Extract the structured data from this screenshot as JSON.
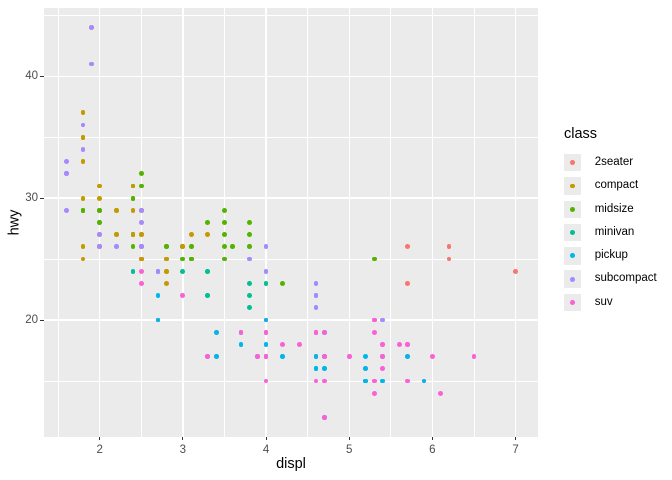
{
  "figure": {
    "background": "#FFFFFF",
    "panel_background": "#EBEBEB",
    "gridline_color": "#FFFFFF",
    "axis_text_color": "#4D4D4D",
    "tick_mark_color": "#333333"
  },
  "chart_data": {
    "type": "scatter",
    "title": "",
    "xlabel": "displ",
    "ylabel": "hwy",
    "x_ticks": [
      2,
      3,
      4,
      5,
      6,
      7
    ],
    "x_minor_ticks": [
      1.5,
      2.5,
      3.5,
      4.5,
      5.5,
      6.5
    ],
    "y_ticks": [
      20,
      30,
      40
    ],
    "y_minor_ticks": [
      15,
      25,
      35,
      45
    ],
    "x_range": [
      1.33,
      7.27
    ],
    "y_range": [
      10.4,
      45.6
    ],
    "grid": true,
    "legend": {
      "title": "class",
      "position": "right",
      "entries": [
        {
          "label": "2seater",
          "color": "#F8766D"
        },
        {
          "label": "compact",
          "color": "#C49A00"
        },
        {
          "label": "midsize",
          "color": "#53B400"
        },
        {
          "label": "minivan",
          "color": "#00C094"
        },
        {
          "label": "pickup",
          "color": "#00B6EB"
        },
        {
          "label": "subcompact",
          "color": "#A58AFF"
        },
        {
          "label": "suv",
          "color": "#FB61D7"
        }
      ]
    },
    "points": [
      [
        1.8,
        29,
        "compact"
      ],
      [
        1.8,
        29,
        "compact"
      ],
      [
        2,
        31,
        "compact"
      ],
      [
        2,
        30,
        "compact"
      ],
      [
        2.8,
        26,
        "compact"
      ],
      [
        2.8,
        26,
        "compact"
      ],
      [
        3.1,
        27,
        "compact"
      ],
      [
        1.8,
        26,
        "compact"
      ],
      [
        1.8,
        25,
        "compact"
      ],
      [
        2,
        28,
        "compact"
      ],
      [
        2,
        27,
        "compact"
      ],
      [
        2.8,
        25,
        "compact"
      ],
      [
        2.8,
        25,
        "compact"
      ],
      [
        3.1,
        25,
        "compact"
      ],
      [
        3.1,
        25,
        "compact"
      ],
      [
        2.8,
        24,
        "midsize"
      ],
      [
        3.1,
        25,
        "midsize"
      ],
      [
        4.2,
        23,
        "midsize"
      ],
      [
        5.3,
        20,
        "suv"
      ],
      [
        5.3,
        15,
        "suv"
      ],
      [
        5.3,
        20,
        "suv"
      ],
      [
        5.7,
        17,
        "suv"
      ],
      [
        6,
        17,
        "suv"
      ],
      [
        5.7,
        26,
        "2seater"
      ],
      [
        5.7,
        23,
        "2seater"
      ],
      [
        6.2,
        26,
        "2seater"
      ],
      [
        6.2,
        25,
        "2seater"
      ],
      [
        7,
        24,
        "2seater"
      ],
      [
        5.3,
        19,
        "suv"
      ],
      [
        5.3,
        14,
        "suv"
      ],
      [
        5.7,
        15,
        "suv"
      ],
      [
        6.5,
        17,
        "suv"
      ],
      [
        2.4,
        27,
        "midsize"
      ],
      [
        2.4,
        30,
        "midsize"
      ],
      [
        3.1,
        26,
        "midsize"
      ],
      [
        3.5,
        29,
        "midsize"
      ],
      [
        3.6,
        26,
        "midsize"
      ],
      [
        2.4,
        24,
        "minivan"
      ],
      [
        3,
        24,
        "minivan"
      ],
      [
        3.3,
        22,
        "minivan"
      ],
      [
        3.3,
        22,
        "minivan"
      ],
      [
        3.3,
        24,
        "minivan"
      ],
      [
        3.3,
        24,
        "minivan"
      ],
      [
        3.3,
        17,
        "minivan"
      ],
      [
        3.8,
        22,
        "minivan"
      ],
      [
        3.8,
        21,
        "minivan"
      ],
      [
        3.8,
        23,
        "minivan"
      ],
      [
        4,
        23,
        "minivan"
      ],
      [
        3.7,
        19,
        "pickup"
      ],
      [
        3.7,
        18,
        "pickup"
      ],
      [
        3.9,
        17,
        "pickup"
      ],
      [
        3.9,
        17,
        "pickup"
      ],
      [
        4.7,
        19,
        "pickup"
      ],
      [
        4.7,
        19,
        "pickup"
      ],
      [
        4.7,
        12,
        "pickup"
      ],
      [
        5.2,
        17,
        "pickup"
      ],
      [
        5.2,
        15,
        "pickup"
      ],
      [
        3.9,
        17,
        "suv"
      ],
      [
        4.7,
        17,
        "suv"
      ],
      [
        4.7,
        12,
        "suv"
      ],
      [
        4.7,
        17,
        "suv"
      ],
      [
        5.2,
        16,
        "suv"
      ],
      [
        5.7,
        18,
        "suv"
      ],
      [
        5.9,
        15,
        "suv"
      ],
      [
        4.7,
        16,
        "pickup"
      ],
      [
        4.7,
        12,
        "pickup"
      ],
      [
        4.7,
        17,
        "pickup"
      ],
      [
        4.7,
        17,
        "pickup"
      ],
      [
        4.7,
        16,
        "pickup"
      ],
      [
        4.7,
        17,
        "pickup"
      ],
      [
        5.2,
        15,
        "pickup"
      ],
      [
        5.2,
        16,
        "pickup"
      ],
      [
        5.7,
        17,
        "pickup"
      ],
      [
        5.9,
        15,
        "pickup"
      ],
      [
        4.6,
        17,
        "suv"
      ],
      [
        5.4,
        17,
        "suv"
      ],
      [
        5.4,
        18,
        "suv"
      ],
      [
        4,
        17,
        "suv"
      ],
      [
        4,
        17,
        "suv"
      ],
      [
        4,
        19,
        "suv"
      ],
      [
        4.6,
        19,
        "suv"
      ],
      [
        4.6,
        19,
        "suv"
      ],
      [
        5,
        17,
        "suv"
      ],
      [
        4.2,
        17,
        "pickup"
      ],
      [
        4.2,
        17,
        "pickup"
      ],
      [
        4.6,
        16,
        "pickup"
      ],
      [
        4.6,
        16,
        "pickup"
      ],
      [
        4.6,
        17,
        "pickup"
      ],
      [
        5.4,
        15,
        "pickup"
      ],
      [
        5.4,
        17,
        "pickup"
      ],
      [
        3.8,
        26,
        "subcompact"
      ],
      [
        3.8,
        25,
        "subcompact"
      ],
      [
        4,
        26,
        "subcompact"
      ],
      [
        4,
        24,
        "subcompact"
      ],
      [
        4.6,
        21,
        "subcompact"
      ],
      [
        4.6,
        22,
        "subcompact"
      ],
      [
        4.6,
        23,
        "subcompact"
      ],
      [
        4.6,
        22,
        "subcompact"
      ],
      [
        5.4,
        20,
        "subcompact"
      ],
      [
        1.6,
        33,
        "subcompact"
      ],
      [
        1.6,
        32,
        "subcompact"
      ],
      [
        1.6,
        32,
        "subcompact"
      ],
      [
        1.6,
        29,
        "subcompact"
      ],
      [
        1.6,
        32,
        "subcompact"
      ],
      [
        1.8,
        34,
        "subcompact"
      ],
      [
        1.8,
        36,
        "subcompact"
      ],
      [
        1.8,
        36,
        "subcompact"
      ],
      [
        2,
        29,
        "subcompact"
      ],
      [
        2.4,
        26,
        "midsize"
      ],
      [
        2.4,
        27,
        "midsize"
      ],
      [
        2.4,
        30,
        "midsize"
      ],
      [
        2.4,
        31,
        "midsize"
      ],
      [
        2.5,
        26,
        "midsize"
      ],
      [
        2.5,
        26,
        "midsize"
      ],
      [
        3.3,
        28,
        "midsize"
      ],
      [
        2,
        26,
        "subcompact"
      ],
      [
        2,
        29,
        "subcompact"
      ],
      [
        2,
        28,
        "subcompact"
      ],
      [
        2,
        27,
        "subcompact"
      ],
      [
        2.7,
        24,
        "subcompact"
      ],
      [
        2.7,
        24,
        "subcompact"
      ],
      [
        2.7,
        24,
        "subcompact"
      ],
      [
        3,
        22,
        "suv"
      ],
      [
        3.7,
        19,
        "suv"
      ],
      [
        4,
        20,
        "suv"
      ],
      [
        4.7,
        19,
        "suv"
      ],
      [
        4.7,
        12,
        "suv"
      ],
      [
        4.7,
        17,
        "suv"
      ],
      [
        5.7,
        18,
        "suv"
      ],
      [
        6.1,
        14,
        "suv"
      ],
      [
        4,
        15,
        "suv"
      ],
      [
        4.2,
        18,
        "suv"
      ],
      [
        4.4,
        18,
        "suv"
      ],
      [
        4.6,
        15,
        "suv"
      ],
      [
        5.4,
        17,
        "suv"
      ],
      [
        5.4,
        16,
        "suv"
      ],
      [
        5.4,
        18,
        "suv"
      ],
      [
        4,
        17,
        "suv"
      ],
      [
        4,
        19,
        "suv"
      ],
      [
        4.6,
        19,
        "suv"
      ],
      [
        5,
        17,
        "suv"
      ],
      [
        2.4,
        29,
        "compact"
      ],
      [
        2.4,
        27,
        "compact"
      ],
      [
        2.5,
        31,
        "midsize"
      ],
      [
        2.5,
        32,
        "midsize"
      ],
      [
        3.5,
        27,
        "midsize"
      ],
      [
        3.5,
        26,
        "midsize"
      ],
      [
        3,
        26,
        "midsize"
      ],
      [
        3,
        25,
        "midsize"
      ],
      [
        3.5,
        25,
        "midsize"
      ],
      [
        3.3,
        17,
        "suv"
      ],
      [
        3.3,
        17,
        "suv"
      ],
      [
        4,
        20,
        "suv"
      ],
      [
        5.6,
        18,
        "suv"
      ],
      [
        3.1,
        26,
        "midsize"
      ],
      [
        3.8,
        26,
        "midsize"
      ],
      [
        3.8,
        27,
        "midsize"
      ],
      [
        3.8,
        28,
        "midsize"
      ],
      [
        5.3,
        25,
        "midsize"
      ],
      [
        2.5,
        25,
        "suv"
      ],
      [
        2.5,
        24,
        "suv"
      ],
      [
        2.5,
        27,
        "suv"
      ],
      [
        2.5,
        25,
        "suv"
      ],
      [
        2.5,
        26,
        "suv"
      ],
      [
        2.5,
        23,
        "suv"
      ],
      [
        2.2,
        26,
        "subcompact"
      ],
      [
        2.2,
        26,
        "subcompact"
      ],
      [
        2.5,
        26,
        "subcompact"
      ],
      [
        2.5,
        26,
        "subcompact"
      ],
      [
        2.5,
        25,
        "compact"
      ],
      [
        2.5,
        27,
        "compact"
      ],
      [
        2.5,
        25,
        "compact"
      ],
      [
        2.5,
        27,
        "compact"
      ],
      [
        2.7,
        20,
        "suv"
      ],
      [
        2.7,
        20,
        "suv"
      ],
      [
        3.4,
        19,
        "suv"
      ],
      [
        3.4,
        17,
        "suv"
      ],
      [
        4,
        20,
        "suv"
      ],
      [
        4.7,
        17,
        "suv"
      ],
      [
        2.2,
        29,
        "midsize"
      ],
      [
        2.2,
        27,
        "midsize"
      ],
      [
        2.4,
        31,
        "midsize"
      ],
      [
        2.4,
        31,
        "midsize"
      ],
      [
        3,
        26,
        "midsize"
      ],
      [
        3,
        26,
        "midsize"
      ],
      [
        3.5,
        28,
        "midsize"
      ],
      [
        2.2,
        27,
        "compact"
      ],
      [
        2.2,
        29,
        "compact"
      ],
      [
        2.4,
        31,
        "compact"
      ],
      [
        2.4,
        31,
        "compact"
      ],
      [
        3,
        26,
        "compact"
      ],
      [
        3,
        26,
        "compact"
      ],
      [
        3.3,
        27,
        "compact"
      ],
      [
        1.8,
        30,
        "compact"
      ],
      [
        1.8,
        33,
        "compact"
      ],
      [
        1.8,
        35,
        "compact"
      ],
      [
        1.8,
        37,
        "compact"
      ],
      [
        1.8,
        35,
        "compact"
      ],
      [
        4.7,
        15,
        "suv"
      ],
      [
        5.7,
        18,
        "suv"
      ],
      [
        2.7,
        20,
        "pickup"
      ],
      [
        2.7,
        20,
        "pickup"
      ],
      [
        2.7,
        22,
        "pickup"
      ],
      [
        3.4,
        17,
        "pickup"
      ],
      [
        3.4,
        19,
        "pickup"
      ],
      [
        4,
        18,
        "pickup"
      ],
      [
        4,
        20,
        "pickup"
      ],
      [
        2,
        29,
        "compact"
      ],
      [
        2,
        26,
        "compact"
      ],
      [
        2,
        29,
        "compact"
      ],
      [
        2,
        29,
        "compact"
      ],
      [
        2.8,
        24,
        "compact"
      ],
      [
        1.9,
        44,
        "compact"
      ],
      [
        2,
        29,
        "compact"
      ],
      [
        2,
        26,
        "compact"
      ],
      [
        2,
        29,
        "compact"
      ],
      [
        2,
        29,
        "compact"
      ],
      [
        2.5,
        29,
        "compact"
      ],
      [
        2.5,
        29,
        "compact"
      ],
      [
        2.8,
        23,
        "compact"
      ],
      [
        2.8,
        24,
        "compact"
      ],
      [
        1.9,
        44,
        "subcompact"
      ],
      [
        1.9,
        41,
        "subcompact"
      ],
      [
        2,
        29,
        "subcompact"
      ],
      [
        2,
        26,
        "subcompact"
      ],
      [
        2.5,
        28,
        "subcompact"
      ],
      [
        2.5,
        29,
        "subcompact"
      ],
      [
        1.8,
        29,
        "midsize"
      ],
      [
        1.8,
        29,
        "midsize"
      ],
      [
        2,
        28,
        "midsize"
      ],
      [
        2,
        29,
        "midsize"
      ],
      [
        2.8,
        26,
        "midsize"
      ],
      [
        2.8,
        26,
        "midsize"
      ],
      [
        3.6,
        26,
        "midsize"
      ]
    ]
  }
}
